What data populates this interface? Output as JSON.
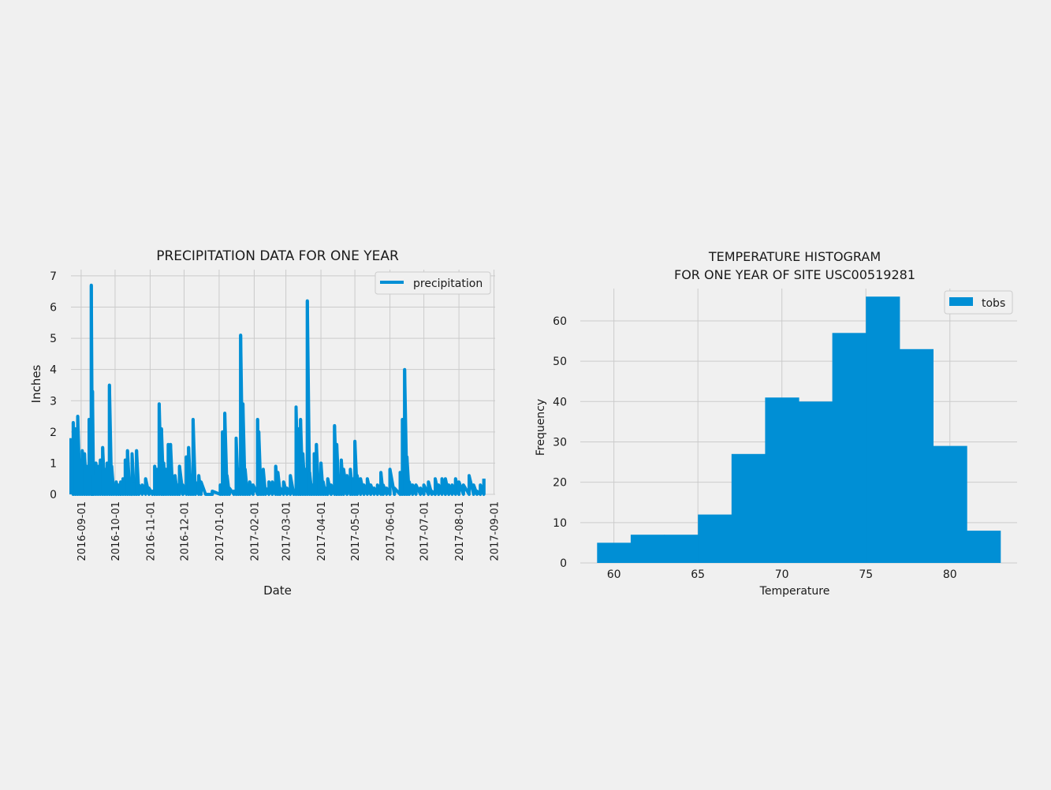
{
  "chart_data": [
    {
      "type": "line",
      "title": "PRECIPITATION DATA FOR ONE YEAR",
      "xlabel": "Date",
      "ylabel": "Inches",
      "ylim": [
        0,
        7.2
      ],
      "xlim": [
        "2016-08-23",
        "2017-09-02"
      ],
      "yticks": [
        0,
        1,
        2,
        3,
        4,
        5,
        6,
        7
      ],
      "xticks": [
        "2016-09-01",
        "2016-10-01",
        "2016-11-01",
        "2016-12-01",
        "2017-01-01",
        "2017-02-01",
        "2017-03-01",
        "2017-04-01",
        "2017-05-01",
        "2017-06-01",
        "2017-07-01",
        "2017-08-01",
        "2017-09-01"
      ],
      "grid": true,
      "legend": "top-right",
      "color": "#008fd5",
      "series": [
        {
          "name": "precipitation",
          "points": [
            [
              "2016-08-23",
              1.8
            ],
            [
              "2016-08-25",
              2.3
            ],
            [
              "2016-08-27",
              2.1
            ],
            [
              "2016-08-29",
              2.5
            ],
            [
              "2016-08-31",
              1.1
            ],
            [
              "2016-09-02",
              1.4
            ],
            [
              "2016-09-04",
              1.3
            ],
            [
              "2016-09-06",
              0.9
            ],
            [
              "2016-09-08",
              2.4
            ],
            [
              "2016-09-10",
              6.7
            ],
            [
              "2016-09-11",
              3.3
            ],
            [
              "2016-09-12",
              0.6
            ],
            [
              "2016-09-14",
              1.0
            ],
            [
              "2016-09-16",
              0.9
            ],
            [
              "2016-09-18",
              1.1
            ],
            [
              "2016-09-20",
              1.5
            ],
            [
              "2016-09-22",
              0.8
            ],
            [
              "2016-09-24",
              1.0
            ],
            [
              "2016-09-26",
              3.5
            ],
            [
              "2016-09-28",
              0.9
            ],
            [
              "2016-09-30",
              0.1
            ],
            [
              "2016-10-02",
              0.4
            ],
            [
              "2016-10-04",
              0.3
            ],
            [
              "2016-10-06",
              0.4
            ],
            [
              "2016-10-08",
              0.5
            ],
            [
              "2016-10-10",
              1.1
            ],
            [
              "2016-10-12",
              1.4
            ],
            [
              "2016-10-14",
              0.2
            ],
            [
              "2016-10-16",
              1.3
            ],
            [
              "2016-10-18",
              0.4
            ],
            [
              "2016-10-20",
              1.4
            ],
            [
              "2016-10-22",
              0.3
            ],
            [
              "2016-10-25",
              0.3
            ],
            [
              "2016-10-28",
              0.5
            ],
            [
              "2016-10-31",
              0.2
            ],
            [
              "2016-11-03",
              0.1
            ],
            [
              "2016-11-05",
              0.9
            ],
            [
              "2016-11-07",
              0.8
            ],
            [
              "2016-11-09",
              2.9
            ],
            [
              "2016-11-11",
              2.1
            ],
            [
              "2016-11-13",
              1.0
            ],
            [
              "2016-11-15",
              0.8
            ],
            [
              "2016-11-17",
              1.6
            ],
            [
              "2016-11-19",
              1.6
            ],
            [
              "2016-11-21",
              0.5
            ],
            [
              "2016-11-23",
              0.6
            ],
            [
              "2016-11-25",
              0.3
            ],
            [
              "2016-11-27",
              0.9
            ],
            [
              "2016-11-30",
              0.3
            ],
            [
              "2016-12-03",
              1.2
            ],
            [
              "2016-12-05",
              1.5
            ],
            [
              "2016-12-07",
              0.6
            ],
            [
              "2016-12-09",
              2.4
            ],
            [
              "2016-12-11",
              0.4
            ],
            [
              "2016-12-14",
              0.6
            ],
            [
              "2016-12-16",
              0.4
            ],
            [
              "2016-12-20",
              0.0
            ],
            [
              "2016-12-26",
              0.1
            ],
            [
              "2017-01-02",
              0.3
            ],
            [
              "2017-01-04",
              2.0
            ],
            [
              "2017-01-06",
              2.6
            ],
            [
              "2017-01-08",
              0.6
            ],
            [
              "2017-01-10",
              0.2
            ],
            [
              "2017-01-14",
              0.1
            ],
            [
              "2017-01-16",
              1.8
            ],
            [
              "2017-01-18",
              0.8
            ],
            [
              "2017-01-20",
              5.1
            ],
            [
              "2017-01-22",
              2.9
            ],
            [
              "2017-01-24",
              0.8
            ],
            [
              "2017-01-26",
              0.3
            ],
            [
              "2017-01-28",
              0.4
            ],
            [
              "2017-01-31",
              0.3
            ],
            [
              "2017-02-04",
              2.4
            ],
            [
              "2017-02-05",
              2.0
            ],
            [
              "2017-02-07",
              0.6
            ],
            [
              "2017-02-09",
              0.8
            ],
            [
              "2017-02-11",
              0.2
            ],
            [
              "2017-02-14",
              0.4
            ],
            [
              "2017-02-17",
              0.4
            ],
            [
              "2017-02-20",
              0.9
            ],
            [
              "2017-02-22",
              0.7
            ],
            [
              "2017-02-24",
              0.2
            ],
            [
              "2017-02-27",
              0.4
            ],
            [
              "2017-03-02",
              0.2
            ],
            [
              "2017-03-05",
              0.6
            ],
            [
              "2017-03-08",
              0.1
            ],
            [
              "2017-03-10",
              2.8
            ],
            [
              "2017-03-12",
              2.1
            ],
            [
              "2017-03-14",
              2.4
            ],
            [
              "2017-03-16",
              1.3
            ],
            [
              "2017-03-18",
              0.8
            ],
            [
              "2017-03-20",
              6.2
            ],
            [
              "2017-03-22",
              0.7
            ],
            [
              "2017-03-24",
              0.3
            ],
            [
              "2017-03-26",
              1.3
            ],
            [
              "2017-03-28",
              1.6
            ],
            [
              "2017-03-30",
              0.6
            ],
            [
              "2017-04-01",
              1.0
            ],
            [
              "2017-04-03",
              0.4
            ],
            [
              "2017-04-05",
              0.2
            ],
            [
              "2017-04-07",
              0.5
            ],
            [
              "2017-04-10",
              0.3
            ],
            [
              "2017-04-13",
              2.2
            ],
            [
              "2017-04-15",
              1.6
            ],
            [
              "2017-04-17",
              0.6
            ],
            [
              "2017-04-19",
              1.1
            ],
            [
              "2017-04-21",
              0.8
            ],
            [
              "2017-04-24",
              0.6
            ],
            [
              "2017-04-27",
              0.8
            ],
            [
              "2017-04-29",
              0.5
            ],
            [
              "2017-05-01",
              1.7
            ],
            [
              "2017-05-03",
              0.6
            ],
            [
              "2017-05-06",
              0.5
            ],
            [
              "2017-05-09",
              0.3
            ],
            [
              "2017-05-12",
              0.5
            ],
            [
              "2017-05-15",
              0.3
            ],
            [
              "2017-05-18",
              0.2
            ],
            [
              "2017-05-21",
              0.3
            ],
            [
              "2017-05-24",
              0.7
            ],
            [
              "2017-05-26",
              0.3
            ],
            [
              "2017-05-29",
              0.2
            ],
            [
              "2017-06-01",
              0.8
            ],
            [
              "2017-06-05",
              0.2
            ],
            [
              "2017-06-10",
              0.7
            ],
            [
              "2017-06-12",
              2.4
            ],
            [
              "2017-06-14",
              4.0
            ],
            [
              "2017-06-16",
              1.2
            ],
            [
              "2017-06-18",
              0.4
            ],
            [
              "2017-06-21",
              0.3
            ],
            [
              "2017-06-24",
              0.3
            ],
            [
              "2017-06-28",
              0.2
            ],
            [
              "2017-07-01",
              0.3
            ],
            [
              "2017-07-05",
              0.4
            ],
            [
              "2017-07-08",
              0.1
            ],
            [
              "2017-07-11",
              0.5
            ],
            [
              "2017-07-14",
              0.3
            ],
            [
              "2017-07-17",
              0.5
            ],
            [
              "2017-07-20",
              0.5
            ],
            [
              "2017-07-23",
              0.3
            ],
            [
              "2017-07-26",
              0.3
            ],
            [
              "2017-07-29",
              0.5
            ],
            [
              "2017-08-01",
              0.4
            ],
            [
              "2017-08-05",
              0.3
            ],
            [
              "2017-08-10",
              0.6
            ],
            [
              "2017-08-14",
              0.3
            ],
            [
              "2017-08-17",
              0.1
            ],
            [
              "2017-08-20",
              0.3
            ],
            [
              "2017-08-23",
              0.5
            ]
          ]
        }
      ]
    },
    {
      "type": "bar",
      "subtype": "histogram",
      "title": [
        "TEMPERATURE HISTOGRAM",
        "FOR ONE YEAR OF SITE USC00519281"
      ],
      "xlabel": "Temperature",
      "ylabel": "Frequency",
      "xlim": [
        58,
        84
      ],
      "ylim": [
        0,
        68
      ],
      "xticks": [
        60,
        65,
        70,
        75,
        80
      ],
      "yticks": [
        0,
        10,
        20,
        30,
        40,
        50,
        60
      ],
      "grid": true,
      "legend": "top-right",
      "color": "#008fd5",
      "bin_edges": [
        59,
        61,
        63,
        65,
        67,
        69,
        71,
        73,
        75,
        77,
        79,
        81,
        83
      ],
      "series": [
        {
          "name": "tobs",
          "values": [
            5,
            7,
            7,
            12,
            27,
            41,
            40,
            57,
            66,
            53,
            29,
            8
          ]
        }
      ]
    }
  ]
}
